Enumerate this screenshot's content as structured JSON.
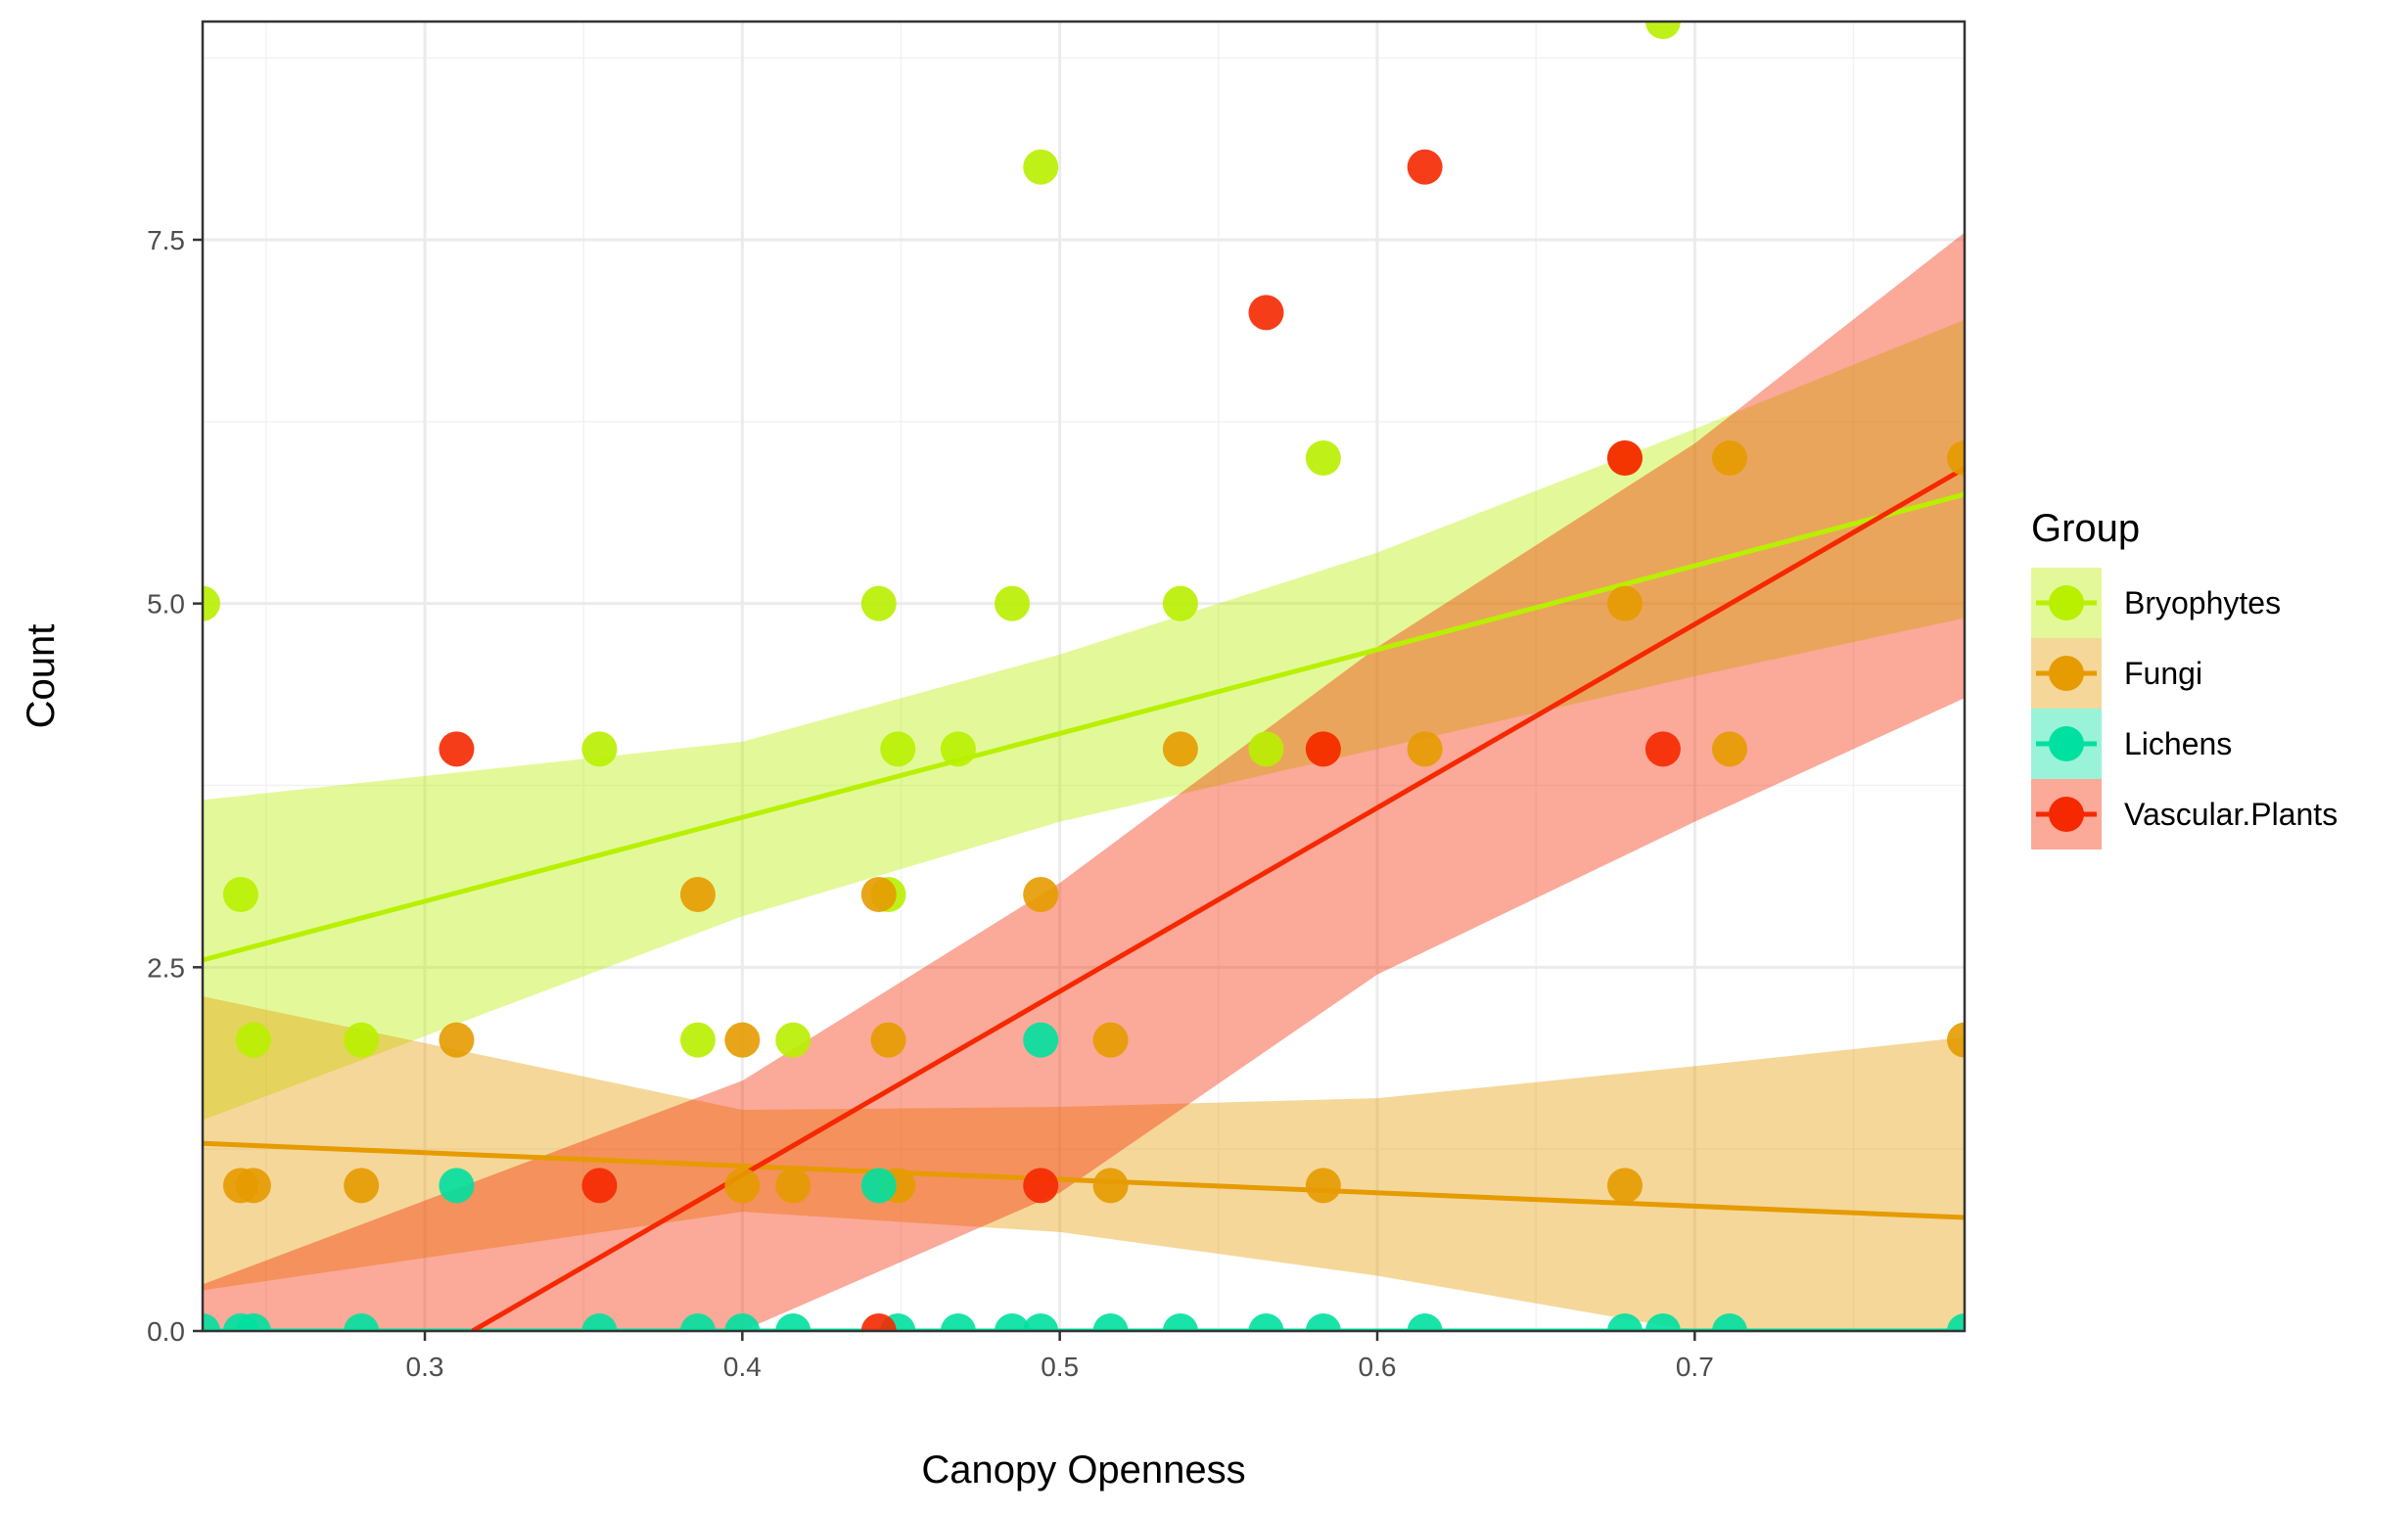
{
  "chart_data": {
    "type": "scatter",
    "xlabel": "Canopy Openness",
    "ylabel": "Count",
    "xlim": [
      0.23,
      0.785
    ],
    "ylim": [
      0,
      9
    ],
    "x_ticks": [
      {
        "value": 0.3,
        "label": "0.3"
      },
      {
        "value": 0.4,
        "label": "0.4"
      },
      {
        "value": 0.5,
        "label": "0.5"
      },
      {
        "value": 0.6,
        "label": "0.6"
      },
      {
        "value": 0.7,
        "label": "0.7"
      }
    ],
    "y_ticks": [
      {
        "value": 0,
        "label": "0.0"
      },
      {
        "value": 2.5,
        "label": "2.5"
      },
      {
        "value": 5,
        "label": "5.0"
      },
      {
        "value": 7.5,
        "label": "7.5"
      }
    ],
    "grid": true,
    "legend": {
      "title": "Group",
      "position": "right"
    },
    "series": [
      {
        "name": "Bryophytes",
        "color": "#B8F000",
        "points": [
          [
            0.23,
            5
          ],
          [
            0.242,
            3
          ],
          [
            0.246,
            2
          ],
          [
            0.28,
            2
          ],
          [
            0.355,
            4
          ],
          [
            0.386,
            2
          ],
          [
            0.416,
            2
          ],
          [
            0.443,
            5
          ],
          [
            0.446,
            3
          ],
          [
            0.449,
            4
          ],
          [
            0.468,
            4
          ],
          [
            0.485,
            5
          ],
          [
            0.494,
            8
          ],
          [
            0.538,
            5
          ],
          [
            0.565,
            4
          ],
          [
            0.583,
            6
          ],
          [
            0.69,
            9
          ]
        ],
        "fit": {
          "x": [
            0.23,
            0.785
          ],
          "y": [
            2.55,
            5.75
          ]
        },
        "band": {
          "x": [
            0.23,
            0.4,
            0.5,
            0.6,
            0.7,
            0.785
          ],
          "lower": [
            1.45,
            2.85,
            3.5,
            4.0,
            4.5,
            4.9
          ],
          "upper": [
            3.65,
            4.05,
            4.65,
            5.35,
            6.2,
            6.95
          ]
        }
      },
      {
        "name": "Fungi",
        "color": "#E69B00",
        "points": [
          [
            0.242,
            1
          ],
          [
            0.246,
            1
          ],
          [
            0.28,
            1
          ],
          [
            0.31,
            2
          ],
          [
            0.386,
            3
          ],
          [
            0.4,
            2
          ],
          [
            0.4,
            1
          ],
          [
            0.416,
            1
          ],
          [
            0.443,
            3
          ],
          [
            0.446,
            2
          ],
          [
            0.449,
            1
          ],
          [
            0.494,
            3
          ],
          [
            0.516,
            2
          ],
          [
            0.516,
            1
          ],
          [
            0.538,
            4
          ],
          [
            0.583,
            4
          ],
          [
            0.583,
            1
          ],
          [
            0.615,
            4
          ],
          [
            0.678,
            6
          ],
          [
            0.678,
            5
          ],
          [
            0.678,
            1
          ],
          [
            0.711,
            6
          ],
          [
            0.711,
            4
          ],
          [
            0.785,
            6
          ],
          [
            0.785,
            2
          ]
        ],
        "fit": {
          "x": [
            0.23,
            0.785
          ],
          "y": [
            1.29,
            0.78
          ]
        },
        "band": {
          "x": [
            0.23,
            0.4,
            0.5,
            0.6,
            0.7,
            0.785
          ],
          "lower": [
            0.28,
            0.82,
            0.68,
            0.38,
            0.0,
            0.0
          ],
          "upper": [
            2.3,
            1.52,
            1.54,
            1.6,
            1.82,
            2.02
          ]
        }
      },
      {
        "name": "Lichens",
        "color": "#00E0A0",
        "points": [
          [
            0.23,
            0
          ],
          [
            0.242,
            0
          ],
          [
            0.246,
            0
          ],
          [
            0.28,
            0
          ],
          [
            0.31,
            1
          ],
          [
            0.355,
            0
          ],
          [
            0.386,
            0
          ],
          [
            0.4,
            0
          ],
          [
            0.416,
            0
          ],
          [
            0.443,
            1
          ],
          [
            0.449,
            0
          ],
          [
            0.468,
            0
          ],
          [
            0.485,
            0
          ],
          [
            0.494,
            2
          ],
          [
            0.494,
            0
          ],
          [
            0.516,
            0
          ],
          [
            0.538,
            0
          ],
          [
            0.565,
            0
          ],
          [
            0.583,
            0
          ],
          [
            0.615,
            0
          ],
          [
            0.678,
            0
          ],
          [
            0.69,
            0
          ],
          [
            0.711,
            0
          ],
          [
            0.785,
            0
          ]
        ],
        "fit": {
          "x": [
            0.23,
            0.785
          ],
          "y": [
            0,
            0
          ]
        },
        "band": {
          "x": [
            0.23,
            0.785
          ],
          "lower": [
            0,
            0
          ],
          "upper": [
            0,
            0
          ]
        }
      },
      {
        "name": "Vascular.Plants",
        "color": "#F52800",
        "points": [
          [
            0.31,
            4
          ],
          [
            0.355,
            1
          ],
          [
            0.443,
            0
          ],
          [
            0.494,
            1
          ],
          [
            0.565,
            7
          ],
          [
            0.583,
            4
          ],
          [
            0.615,
            8
          ],
          [
            0.678,
            6
          ],
          [
            0.69,
            4
          ]
        ],
        "fit": {
          "x": [
            0.315,
            0.785
          ],
          "y": [
            0,
            5.93
          ]
        },
        "band": {
          "x": [
            0.23,
            0.4,
            0.5,
            0.6,
            0.7,
            0.785
          ],
          "lower": [
            0,
            0,
            0.95,
            2.45,
            3.5,
            4.35
          ],
          "upper": [
            0.32,
            1.72,
            3.08,
            4.7,
            6.1,
            7.55
          ]
        }
      }
    ]
  }
}
